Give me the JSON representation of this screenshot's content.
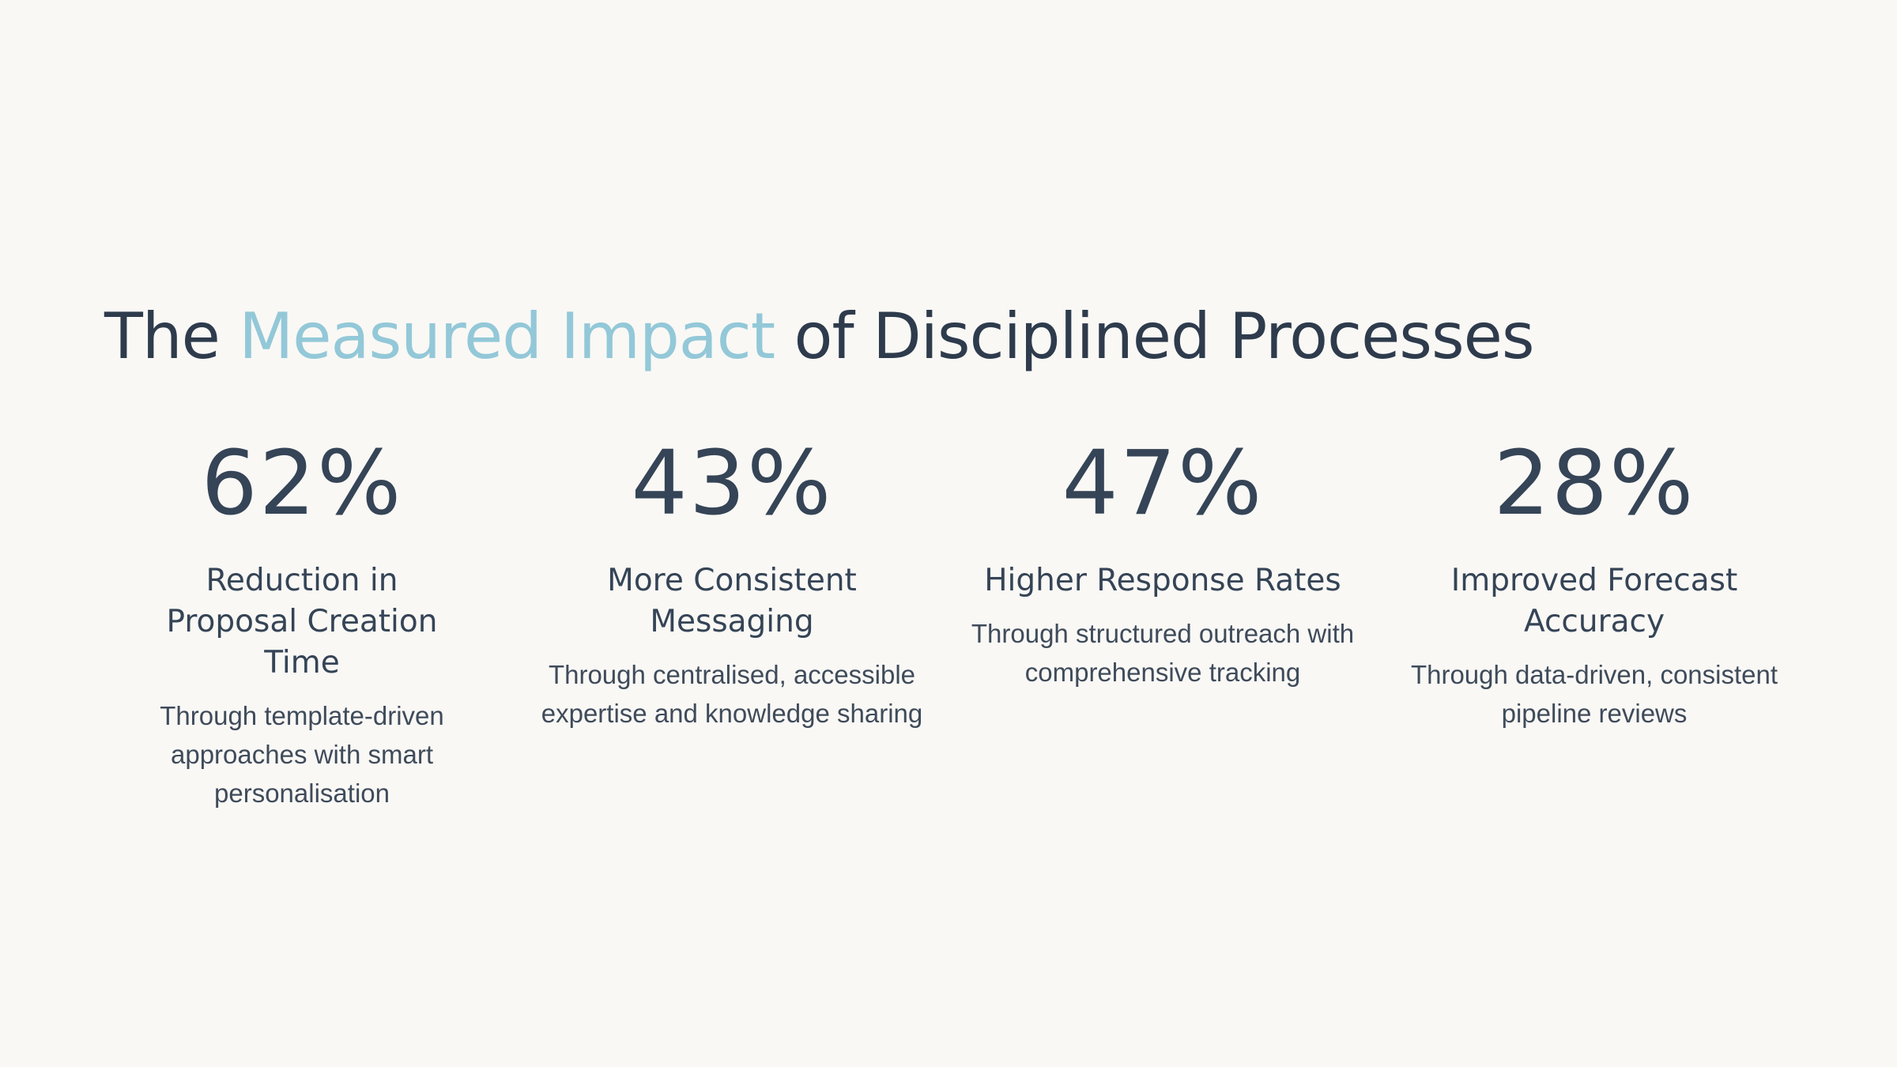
{
  "slide": {
    "title_prefix": "The ",
    "title_accent": "Measured Impact",
    "title_suffix": " of Disciplined Processes",
    "accent_color": "#93c8d8",
    "text_color": "#2e3b4c",
    "background_color": "#f9f8f5"
  },
  "stats": [
    {
      "value": "62%",
      "label": "Reduction in Proposal Creation Time",
      "description": "Through template-driven approaches with smart personalisation"
    },
    {
      "value": "43%",
      "label": "More Consistent Messaging",
      "description": "Through centralised, accessible expertise and knowledge sharing"
    },
    {
      "value": "47%",
      "label": "Higher Response Rates",
      "description": "Through structured outreach with comprehensive tracking"
    },
    {
      "value": "28%",
      "label": "Improved Forecast Accuracy",
      "description": "Through data-driven, consistent pipeline reviews"
    }
  ]
}
